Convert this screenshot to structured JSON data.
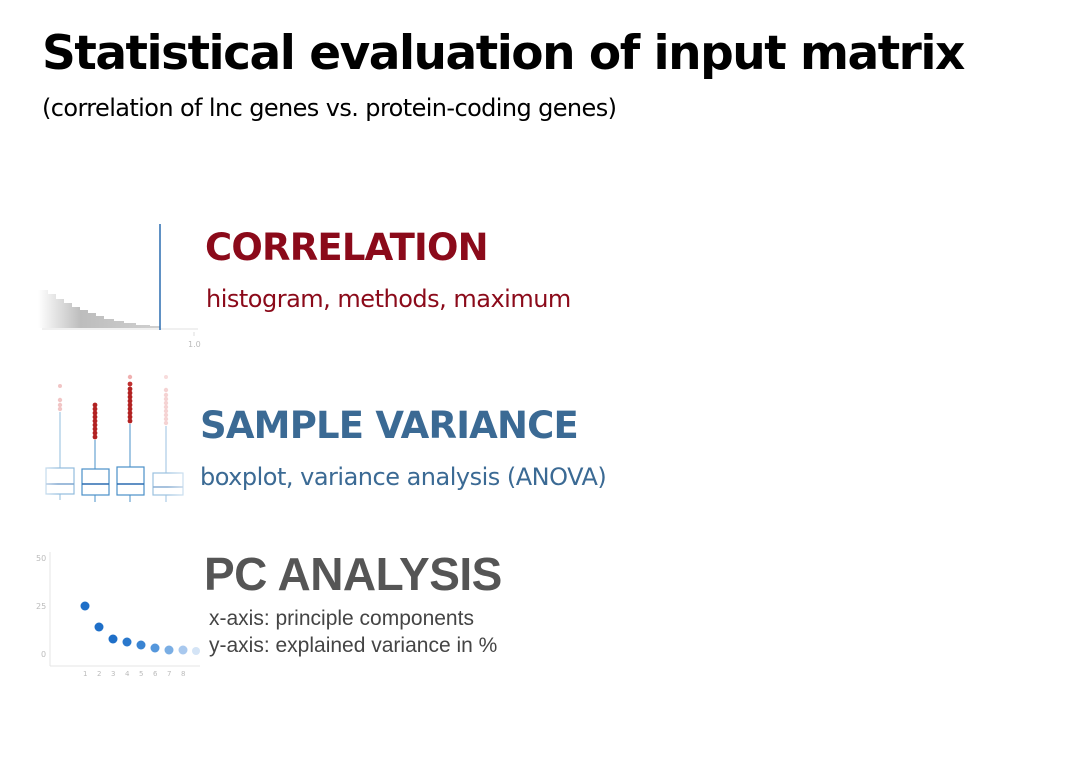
{
  "title": "Statistical evaluation of input matrix",
  "subtitle": "(correlation of lnc genes vs. protein-coding genes)",
  "colors": {
    "correlation": "#8b0a1a",
    "variance": "#3b6a94",
    "pca": "#555555",
    "pca_desc": "#444444"
  },
  "sections": {
    "correlation": {
      "heading": "CORRELATION",
      "description": "histogram, methods, maximum",
      "thumbnail": {
        "x_tick": "1.0"
      }
    },
    "variance": {
      "heading": "SAMPLE VARIANCE",
      "description": "boxplot, variance analysis (ANOVA)"
    },
    "pca": {
      "heading": "PC ANALYSIS",
      "description_lines": [
        "x-axis: principle components",
        "y-axis: explained variance in %"
      ],
      "thumbnail": {
        "y_ticks": [
          "50",
          "25",
          "0"
        ],
        "x_ticks": [
          "1",
          "2",
          "3",
          "4",
          "5",
          "6",
          "7",
          "8"
        ]
      }
    }
  }
}
